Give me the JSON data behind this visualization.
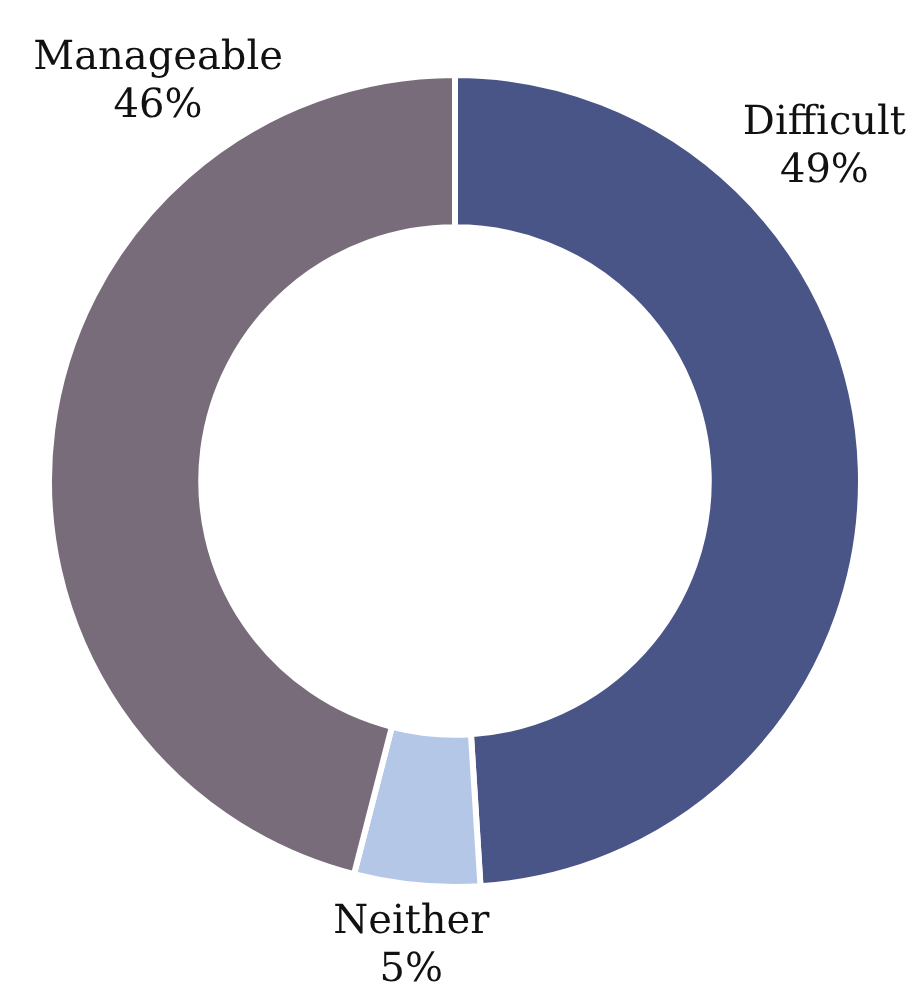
{
  "chart_data": {
    "type": "donut",
    "categories": [
      "Difficult",
      "Neither",
      "Manageable"
    ],
    "values": [
      49,
      5,
      46
    ],
    "colors": [
      "#4a5587",
      "#b4c7e7",
      "#786c7a"
    ],
    "value_labels": [
      "49%",
      "5%",
      "46%"
    ]
  }
}
